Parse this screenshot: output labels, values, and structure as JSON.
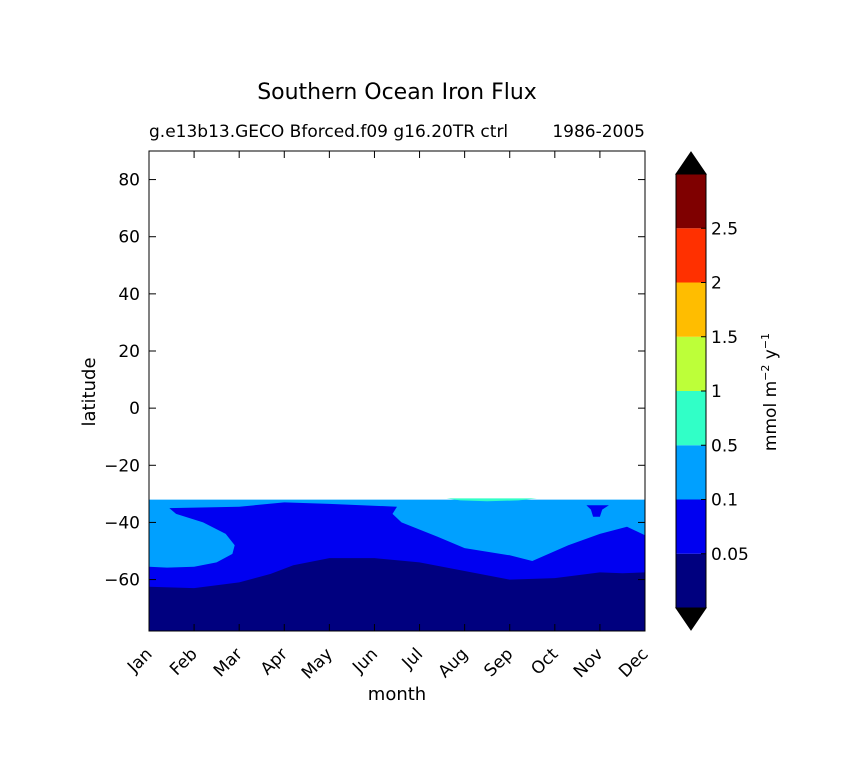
{
  "chart_data": {
    "type": "heatmap",
    "subtype": "filled-contour",
    "title": "Southern Ocean Iron Flux",
    "subtitle_left": "g.e13b13.GECO Bforced.f09 g16.20TR ctrl",
    "subtitle_right": "1986-2005",
    "xlabel": "month",
    "ylabel": "latitude",
    "x_categories": [
      "Jan",
      "Feb",
      "Mar",
      "Apr",
      "May",
      "Jun",
      "Jul",
      "Aug",
      "Sep",
      "Oct",
      "Nov",
      "Dec"
    ],
    "x_positions": [
      1,
      2,
      3,
      4,
      5,
      6,
      7,
      8,
      9,
      10,
      11,
      12
    ],
    "xlim": [
      1,
      12
    ],
    "ylim": [
      -78,
      90
    ],
    "y_ticks": [
      -60,
      -40,
      -20,
      0,
      20,
      40,
      60,
      80
    ],
    "y_tick_labels": [
      "−60",
      "−40",
      "−20",
      "0",
      "20",
      "40",
      "60",
      "80"
    ],
    "data_top_latitude": -32,
    "grid": false,
    "colorbar": {
      "label": "mmol m⁻² y⁻¹",
      "label_main": "mmol m",
      "label_exp1": "−2",
      "label_mid": " y",
      "label_exp2": "−1",
      "tick_labels": [
        "0.05",
        "0.1",
        "0.5",
        "1",
        "1.5",
        "2",
        "2.5"
      ],
      "levels": [
        0,
        0.05,
        0.1,
        0.5,
        1,
        1.5,
        2,
        2.5,
        3
      ],
      "colors": [
        "#00007f",
        "#0000f1",
        "#00a0ff",
        "#31ffc7",
        "#bdff39",
        "#ffbd00",
        "#ff3000",
        "#7f0000"
      ],
      "extend": "both",
      "under_color": "#000000",
      "over_color": "#000000"
    },
    "contours": {
      "boundary_0_05_latitude": [
        -62.5,
        -62.5,
        -61,
        -57.5,
        -52.5,
        -52,
        -52.5,
        -55,
        -58,
        -60.5,
        -60,
        -57.5,
        -57.5
      ],
      "boundary_0_05_x": [
        1,
        2,
        3,
        4,
        4.5,
        6,
        7,
        8,
        9,
        10,
        11,
        11.5,
        12
      ],
      "boundary_0_1_south_latitude": [
        -55.5,
        -55.5,
        -51.5,
        -46,
        -36,
        -34,
        -34,
        -34,
        -34,
        -34,
        -34,
        -33.5,
        -34
      ],
      "region_0_1_b_latitude": [
        -33,
        -35,
        -41,
        -48,
        -50.5,
        -53,
        -54.5,
        -46.5,
        -41.5,
        -44.5
      ],
      "region_0_1_b_x": [
        5.5,
        6,
        5.8,
        7,
        8,
        9,
        9.5,
        10.5,
        11,
        12
      ],
      "region_0_5_x_range": [
        8,
        9.5
      ],
      "region_0_5_latitude_range": [
        -32.5,
        -31.6
      ]
    }
  }
}
